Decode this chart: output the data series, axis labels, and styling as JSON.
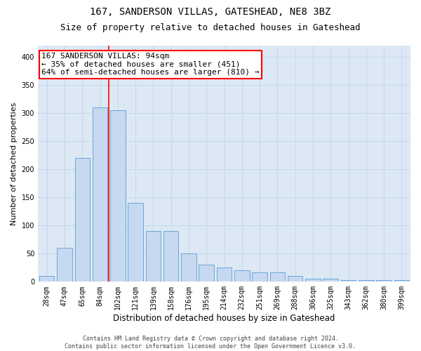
{
  "title1": "167, SANDERSON VILLAS, GATESHEAD, NE8 3BZ",
  "title2": "Size of property relative to detached houses in Gateshead",
  "xlabel": "Distribution of detached houses by size in Gateshead",
  "ylabel": "Number of detached properties",
  "categories": [
    "28sqm",
    "47sqm",
    "65sqm",
    "84sqm",
    "102sqm",
    "121sqm",
    "139sqm",
    "158sqm",
    "176sqm",
    "195sqm",
    "214sqm",
    "232sqm",
    "251sqm",
    "269sqm",
    "288sqm",
    "306sqm",
    "325sqm",
    "343sqm",
    "362sqm",
    "380sqm",
    "399sqm"
  ],
  "values": [
    10,
    60,
    220,
    310,
    305,
    140,
    90,
    90,
    50,
    30,
    25,
    20,
    17,
    17,
    10,
    5,
    5,
    3,
    3,
    3,
    3
  ],
  "bar_color": "#c6d9f0",
  "bar_edge_color": "#5b9bd5",
  "grid_color": "#c8d8ea",
  "background_color": "#dce9f5",
  "red_line_x": 3.5,
  "annotation_line1": "167 SANDERSON VILLAS: 94sqm",
  "annotation_line2": "← 35% of detached houses are smaller (451)",
  "annotation_line3": "64% of semi-detached houses are larger (810) →",
  "annotation_box_color": "white",
  "annotation_box_edge": "red",
  "ylim": [
    0,
    420
  ],
  "yticks": [
    0,
    50,
    100,
    150,
    200,
    250,
    300,
    350,
    400
  ],
  "footer1": "Contains HM Land Registry data © Crown copyright and database right 2024.",
  "footer2": "Contains public sector information licensed under the Open Government Licence v3.0.",
  "title1_fontsize": 10,
  "title2_fontsize": 9,
  "xlabel_fontsize": 8.5,
  "ylabel_fontsize": 8,
  "tick_fontsize": 7,
  "footer_fontsize": 6,
  "annot_fontsize": 8
}
